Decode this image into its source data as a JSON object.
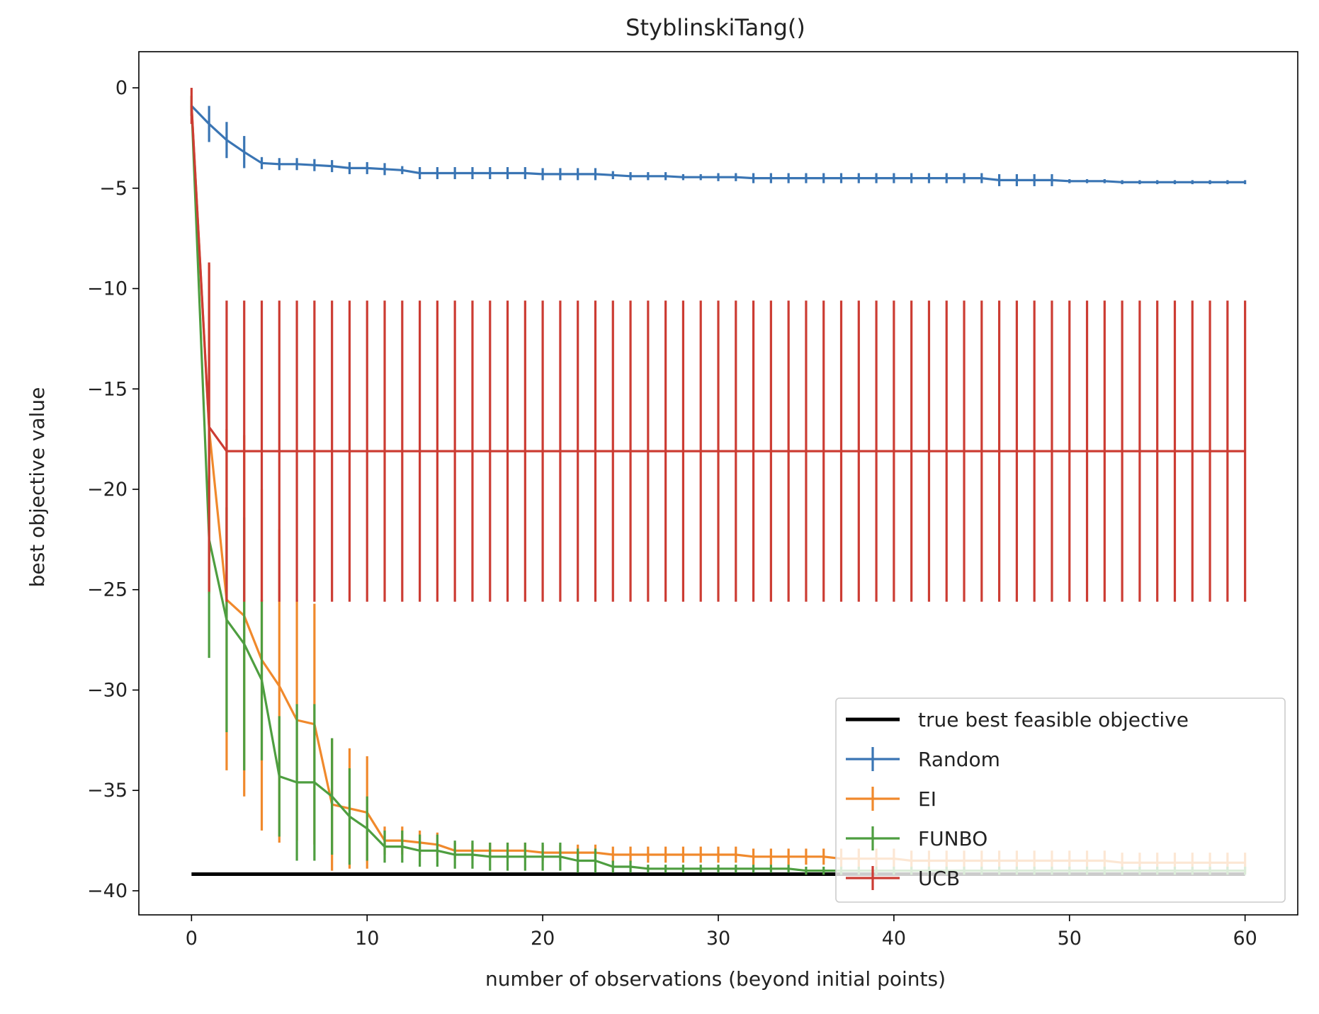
{
  "chart_data": {
    "type": "line",
    "title": "StyblinskiTang()",
    "xlabel": "number of observations (beyond initial points)",
    "ylabel": "best objective value",
    "xlim": [
      -3,
      63
    ],
    "ylim": [
      -41.2,
      1.8
    ],
    "xticks": [
      0,
      10,
      20,
      30,
      40,
      50,
      60
    ],
    "yticks": [
      0,
      -5,
      -10,
      -15,
      -20,
      -25,
      -30,
      -35,
      -40
    ],
    "xtick_labels": [
      "0",
      "10",
      "20",
      "30",
      "40",
      "50",
      "60"
    ],
    "ytick_labels": [
      "0",
      "−5",
      "−10",
      "−15",
      "−20",
      "−25",
      "−30",
      "−35",
      "−40"
    ],
    "grid": false,
    "legend_position": "lower-right",
    "reference_line": {
      "name": "true best feasible objective",
      "y": -39.17,
      "x_range": [
        0,
        60
      ],
      "color": "#000000"
    },
    "series": [
      {
        "name": "Random",
        "color": "#3a75b4",
        "x": [
          0,
          1,
          2,
          3,
          4,
          5,
          6,
          7,
          8,
          9,
          10,
          11,
          12,
          13,
          14,
          15,
          16,
          17,
          18,
          19,
          20,
          21,
          22,
          23,
          24,
          25,
          26,
          27,
          28,
          29,
          30,
          31,
          32,
          33,
          34,
          35,
          36,
          37,
          38,
          39,
          40,
          41,
          42,
          43,
          44,
          45,
          46,
          47,
          48,
          49,
          50,
          51,
          52,
          53,
          54,
          55,
          56,
          57,
          58,
          59,
          60
        ],
        "y": [
          -0.9,
          -1.8,
          -2.6,
          -3.2,
          -3.75,
          -3.8,
          -3.8,
          -3.85,
          -3.9,
          -4.0,
          -4.0,
          -4.05,
          -4.1,
          -4.25,
          -4.25,
          -4.25,
          -4.25,
          -4.25,
          -4.25,
          -4.25,
          -4.3,
          -4.3,
          -4.3,
          -4.3,
          -4.35,
          -4.4,
          -4.4,
          -4.4,
          -4.45,
          -4.45,
          -4.45,
          -4.45,
          -4.5,
          -4.5,
          -4.5,
          -4.5,
          -4.5,
          -4.5,
          -4.5,
          -4.5,
          -4.5,
          -4.5,
          -4.5,
          -4.5,
          -4.5,
          -4.5,
          -4.6,
          -4.6,
          -4.6,
          -4.6,
          -4.65,
          -4.65,
          -4.65,
          -4.7,
          -4.7,
          -4.7,
          -4.7,
          -4.7,
          -4.7,
          -4.7,
          -4.7
        ],
        "err": [
          0.3,
          0.9,
          0.9,
          0.8,
          0.3,
          0.3,
          0.3,
          0.3,
          0.3,
          0.3,
          0.3,
          0.3,
          0.2,
          0.3,
          0.3,
          0.3,
          0.3,
          0.3,
          0.3,
          0.3,
          0.3,
          0.3,
          0.3,
          0.3,
          0.2,
          0.2,
          0.2,
          0.2,
          0.15,
          0.15,
          0.2,
          0.2,
          0.25,
          0.25,
          0.25,
          0.25,
          0.25,
          0.25,
          0.25,
          0.25,
          0.25,
          0.25,
          0.25,
          0.25,
          0.25,
          0.25,
          0.3,
          0.3,
          0.3,
          0.3,
          0.1,
          0.1,
          0.1,
          0.1,
          0.1,
          0.1,
          0.1,
          0.1,
          0.1,
          0.1,
          0.1
        ]
      },
      {
        "name": "EI",
        "color": "#f0892c",
        "x": [
          0,
          1,
          2,
          3,
          4,
          5,
          6,
          7,
          8,
          9,
          10,
          11,
          12,
          13,
          14,
          15,
          16,
          17,
          18,
          19,
          20,
          21,
          22,
          23,
          24,
          25,
          26,
          27,
          28,
          29,
          30,
          31,
          32,
          33,
          34,
          35,
          36,
          37,
          38,
          39,
          40,
          41,
          42,
          43,
          44,
          45,
          46,
          47,
          48,
          49,
          50,
          51,
          52,
          53,
          54,
          55,
          56,
          57,
          58,
          59,
          60
        ],
        "y": [
          -0.9,
          -17.0,
          -25.5,
          -26.3,
          -28.5,
          -29.8,
          -31.5,
          -31.7,
          -35.7,
          -35.9,
          -36.1,
          -37.5,
          -37.5,
          -37.6,
          -37.7,
          -38.0,
          -38.0,
          -38.0,
          -38.0,
          -38.0,
          -38.1,
          -38.1,
          -38.1,
          -38.1,
          -38.2,
          -38.2,
          -38.2,
          -38.2,
          -38.2,
          -38.2,
          -38.2,
          -38.2,
          -38.3,
          -38.3,
          -38.3,
          -38.3,
          -38.3,
          -38.4,
          -38.4,
          -38.4,
          -38.4,
          -38.5,
          -38.5,
          -38.5,
          -38.5,
          -38.5,
          -38.5,
          -38.5,
          -38.5,
          -38.5,
          -38.5,
          -38.5,
          -38.5,
          -38.6,
          -38.6,
          -38.6,
          -38.6,
          -38.6,
          -38.6,
          -38.6,
          -38.6
        ],
        "err": [
          0.5,
          8.2,
          8.5,
          9.0,
          8.5,
          7.8,
          6.0,
          6.0,
          3.3,
          3.0,
          2.8,
          0.7,
          0.7,
          0.6,
          0.6,
          0.4,
          0.4,
          0.4,
          0.4,
          0.4,
          0.4,
          0.4,
          0.4,
          0.4,
          0.4,
          0.4,
          0.4,
          0.4,
          0.4,
          0.4,
          0.4,
          0.4,
          0.4,
          0.4,
          0.4,
          0.4,
          0.4,
          0.5,
          0.5,
          0.5,
          0.5,
          0.5,
          0.5,
          0.5,
          0.5,
          0.5,
          0.5,
          0.5,
          0.5,
          0.5,
          0.5,
          0.5,
          0.5,
          0.5,
          0.5,
          0.5,
          0.5,
          0.5,
          0.5,
          0.5,
          0.5
        ]
      },
      {
        "name": "FUNBO",
        "color": "#4e9e40",
        "x": [
          0,
          1,
          2,
          3,
          4,
          5,
          6,
          7,
          8,
          9,
          10,
          11,
          12,
          13,
          14,
          15,
          16,
          17,
          18,
          19,
          20,
          21,
          22,
          23,
          24,
          25,
          26,
          27,
          28,
          29,
          30,
          31,
          32,
          33,
          34,
          35,
          36,
          37,
          38,
          39,
          40,
          41,
          42,
          43,
          44,
          45,
          46,
          47,
          48,
          49,
          50,
          51,
          52,
          53,
          54,
          55,
          56,
          57,
          58,
          59,
          60
        ],
        "y": [
          -0.9,
          -22.5,
          -26.5,
          -27.7,
          -29.5,
          -34.3,
          -34.6,
          -34.6,
          -35.3,
          -36.3,
          -36.9,
          -37.8,
          -37.8,
          -38.0,
          -38.0,
          -38.2,
          -38.2,
          -38.3,
          -38.3,
          -38.3,
          -38.3,
          -38.3,
          -38.5,
          -38.5,
          -38.8,
          -38.8,
          -38.9,
          -38.9,
          -38.9,
          -38.9,
          -38.9,
          -38.9,
          -38.9,
          -38.9,
          -38.9,
          -39.0,
          -39.0,
          -39.0,
          -39.0,
          -39.0,
          -39.0,
          -39.0,
          -39.0,
          -39.0,
          -39.0,
          -39.0,
          -39.0,
          -39.0,
          -39.0,
          -39.0,
          -39.0,
          -39.0,
          -39.0,
          -39.0,
          -39.0,
          -39.0,
          -39.0,
          -39.0,
          -39.0,
          -39.0,
          -39.0
        ],
        "err": [
          0.5,
          5.9,
          5.6,
          6.3,
          4.0,
          3.0,
          3.9,
          3.9,
          2.9,
          2.4,
          1.6,
          0.8,
          0.8,
          0.8,
          0.8,
          0.7,
          0.7,
          0.7,
          0.7,
          0.7,
          0.7,
          0.7,
          0.6,
          0.6,
          0.3,
          0.3,
          0.2,
          0.2,
          0.2,
          0.2,
          0.2,
          0.2,
          0.2,
          0.2,
          0.2,
          0.2,
          0.2,
          0.2,
          0.2,
          0.2,
          0.2,
          0.2,
          0.2,
          0.2,
          0.2,
          0.2,
          0.2,
          0.2,
          0.2,
          0.2,
          0.2,
          0.2,
          0.2,
          0.2,
          0.2,
          0.2,
          0.2,
          0.2,
          0.2,
          0.2,
          0.2
        ]
      },
      {
        "name": "UCB",
        "color": "#cc3c33",
        "x": [
          0,
          1,
          2,
          3,
          4,
          5,
          6,
          7,
          8,
          9,
          10,
          11,
          12,
          13,
          14,
          15,
          16,
          17,
          18,
          19,
          20,
          21,
          22,
          23,
          24,
          25,
          26,
          27,
          28,
          29,
          30,
          31,
          32,
          33,
          34,
          35,
          36,
          37,
          38,
          39,
          40,
          41,
          42,
          43,
          44,
          45,
          46,
          47,
          48,
          49,
          50,
          51,
          52,
          53,
          54,
          55,
          56,
          57,
          58,
          59,
          60
        ],
        "y": [
          -0.9,
          -16.9,
          -18.1,
          -18.1,
          -18.1,
          -18.1,
          -18.1,
          -18.1,
          -18.1,
          -18.1,
          -18.1,
          -18.1,
          -18.1,
          -18.1,
          -18.1,
          -18.1,
          -18.1,
          -18.1,
          -18.1,
          -18.1,
          -18.1,
          -18.1,
          -18.1,
          -18.1,
          -18.1,
          -18.1,
          -18.1,
          -18.1,
          -18.1,
          -18.1,
          -18.1,
          -18.1,
          -18.1,
          -18.1,
          -18.1,
          -18.1,
          -18.1,
          -18.1,
          -18.1,
          -18.1,
          -18.1,
          -18.1,
          -18.1,
          -18.1,
          -18.1,
          -18.1,
          -18.1,
          -18.1,
          -18.1,
          -18.1,
          -18.1,
          -18.1,
          -18.1,
          -18.1,
          -18.1,
          -18.1,
          -18.1,
          -18.1,
          -18.1,
          -18.1,
          -18.1
        ],
        "err": [
          0.9,
          8.2,
          7.5,
          7.5,
          7.5,
          7.5,
          7.5,
          7.5,
          7.5,
          7.5,
          7.5,
          7.5,
          7.5,
          7.5,
          7.5,
          7.5,
          7.5,
          7.5,
          7.5,
          7.5,
          7.5,
          7.5,
          7.5,
          7.5,
          7.5,
          7.5,
          7.5,
          7.5,
          7.5,
          7.5,
          7.5,
          7.5,
          7.5,
          7.5,
          7.5,
          7.5,
          7.5,
          7.5,
          7.5,
          7.5,
          7.5,
          7.5,
          7.5,
          7.5,
          7.5,
          7.5,
          7.5,
          7.5,
          7.5,
          7.5,
          7.5,
          7.5,
          7.5,
          7.5,
          7.5,
          7.5,
          7.5,
          7.5,
          7.5,
          7.5,
          7.5
        ]
      }
    ]
  }
}
